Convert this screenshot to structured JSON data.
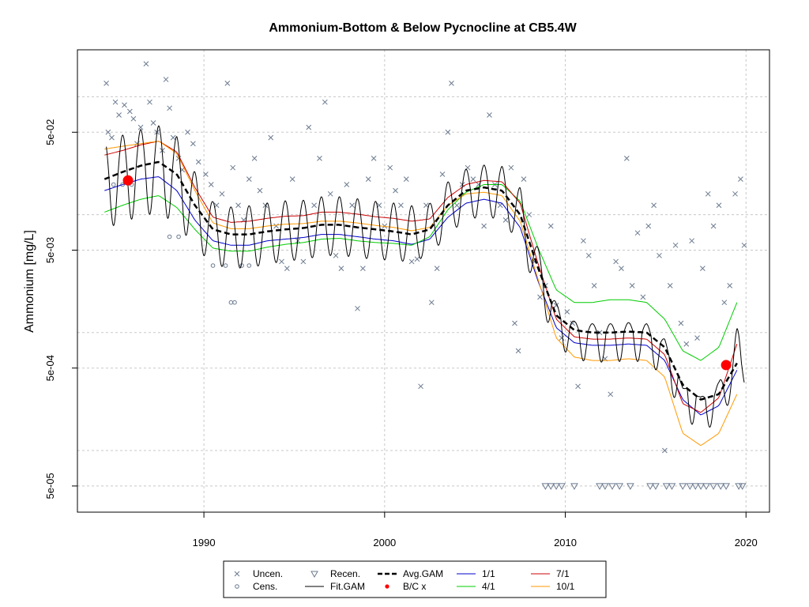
{
  "chart_data": {
    "type": "line",
    "title": "Ammonium-Bottom & Below Pycnocline at CB5.4W",
    "xlabel": "",
    "ylabel": "Ammonium [mg/L]",
    "y_scale": "log10",
    "xlim": [
      1983,
      2021.3
    ],
    "ylim": [
      3e-05,
      0.25
    ],
    "x_ticks": [
      1990,
      2000,
      2010,
      2020
    ],
    "x_tick_labels": [
      "1990",
      "2000",
      "2010",
      "2020"
    ],
    "y_ticks": [
      5e-05,
      0.0005,
      0.005,
      0.05
    ],
    "y_tick_labels": [
      "5e-05",
      "5e-04",
      "5e-03",
      "5e-02"
    ],
    "grid": true,
    "legend_position": "bottom-center",
    "legend": [
      {
        "label": "Uncen.",
        "symbol": "x"
      },
      {
        "label": "Cens.",
        "symbol": "circle"
      },
      {
        "label": "Recen.",
        "symbol": "triangle-down"
      },
      {
        "label": "Fit.GAM",
        "symbol": "line"
      },
      {
        "label": "Avg.GAM",
        "symbol": "dashed-line"
      },
      {
        "label": "B/C x",
        "symbol": "dot"
      },
      {
        "label": "1/1",
        "symbol": "line"
      },
      {
        "label": "4/1",
        "symbol": "line"
      },
      {
        "label": "7/1",
        "symbol": "line"
      },
      {
        "label": "10/1",
        "symbol": "line"
      }
    ],
    "colors": {
      "points": "#6b7a8f",
      "fit": "#000000",
      "avg": "#000000",
      "bc": "#ff0000",
      "s1_1": "#0000cc",
      "s4_1": "#00cc00",
      "s7_1": "#cc0000",
      "s10_1": "#ff9900",
      "grid": "#c8c8c8"
    },
    "avg_gam": {
      "x": [
        1984.5,
        1985.5,
        1986.5,
        1987.5,
        1988.5,
        1989.5,
        1990.5,
        1991.5,
        1992.5,
        1993.5,
        1994.5,
        1995.5,
        1996.5,
        1997.5,
        1998.5,
        1999.5,
        2000.5,
        2001.5,
        2002.5,
        2003.5,
        2004.5,
        2005.5,
        2006.5,
        2007.5,
        2008.5,
        2009.5,
        2010.5,
        2011.5,
        2012.5,
        2013.5,
        2014.5,
        2015.5,
        2016.5,
        2017.5,
        2018.5,
        2019.5
      ],
      "y": [
        0.02,
        0.023,
        0.026,
        0.028,
        0.022,
        0.012,
        0.0075,
        0.0068,
        0.0068,
        0.0072,
        0.0075,
        0.0077,
        0.0082,
        0.0082,
        0.0078,
        0.0075,
        0.0072,
        0.0068,
        0.0075,
        0.012,
        0.016,
        0.017,
        0.016,
        0.01,
        0.0035,
        0.0014,
        0.00105,
        0.001,
        0.001,
        0.00102,
        0.001,
        0.00075,
        0.00036,
        0.00027,
        0.0003,
        0.00055
      ]
    },
    "seasonal_curves": [
      {
        "name": "1/1",
        "x": [
          1984.5,
          1985.5,
          1986.5,
          1987.5,
          1988.5,
          1989.5,
          1990.5,
          1991.5,
          1992.5,
          1993.5,
          1994.5,
          1995.5,
          1996.5,
          1997.5,
          1998.5,
          1999.5,
          2000.5,
          2001.5,
          2002.5,
          2003.5,
          2004.5,
          2005.5,
          2006.5,
          2007.5,
          2008.5,
          2009.5,
          2010.5,
          2011.5,
          2012.5,
          2013.5,
          2014.5,
          2015.5,
          2016.5,
          2017.5,
          2018.5,
          2019.5
        ],
        "y": [
          0.016,
          0.018,
          0.02,
          0.021,
          0.016,
          0.009,
          0.006,
          0.0055,
          0.0055,
          0.006,
          0.0062,
          0.0064,
          0.0068,
          0.0068,
          0.0065,
          0.0062,
          0.006,
          0.0056,
          0.0062,
          0.0095,
          0.0125,
          0.0135,
          0.0125,
          0.0078,
          0.0027,
          0.0011,
          0.00082,
          0.00078,
          0.00078,
          0.0008,
          0.00078,
          0.00058,
          0.00027,
          0.0002,
          0.00024,
          0.00048
        ]
      },
      {
        "name": "4/1",
        "x": [
          1984.5,
          1985.5,
          1986.5,
          1987.5,
          1988.5,
          1989.5,
          1990.5,
          1991.5,
          1992.5,
          1993.5,
          1994.5,
          1995.5,
          1996.5,
          1997.5,
          1998.5,
          1999.5,
          2000.5,
          2001.5,
          2002.5,
          2003.5,
          2004.5,
          2005.5,
          2006.5,
          2007.5,
          2008.5,
          2009.5,
          2010.5,
          2011.5,
          2012.5,
          2013.5,
          2014.5,
          2015.5,
          2016.5,
          2017.5,
          2018.5,
          2019.5
        ],
        "y": [
          0.0105,
          0.012,
          0.0135,
          0.0145,
          0.0115,
          0.0075,
          0.0052,
          0.0049,
          0.0049,
          0.0053,
          0.0056,
          0.0058,
          0.0062,
          0.0063,
          0.006,
          0.0058,
          0.0057,
          0.0055,
          0.0065,
          0.011,
          0.0155,
          0.018,
          0.018,
          0.013,
          0.0052,
          0.0023,
          0.0018,
          0.0018,
          0.0019,
          0.0019,
          0.0018,
          0.0013,
          0.0007,
          0.00058,
          0.00075,
          0.0018
        ]
      },
      {
        "name": "7/1",
        "x": [
          1984.5,
          1985.5,
          1986.5,
          1987.5,
          1988.5,
          1989.5,
          1990.5,
          1991.5,
          1992.5,
          1993.5,
          1994.5,
          1995.5,
          1996.5,
          1997.5,
          1998.5,
          1999.5,
          2000.5,
          2001.5,
          2002.5,
          2003.5,
          2004.5,
          2005.5,
          2006.5,
          2007.5,
          2008.5,
          2009.5,
          2010.5,
          2011.5,
          2012.5,
          2013.5,
          2014.5,
          2015.5,
          2016.5,
          2017.5,
          2018.5,
          2019.5
        ],
        "y": [
          0.032,
          0.035,
          0.039,
          0.042,
          0.034,
          0.017,
          0.0095,
          0.0086,
          0.0088,
          0.0093,
          0.0097,
          0.0098,
          0.0105,
          0.0105,
          0.0101,
          0.0096,
          0.0093,
          0.0088,
          0.0092,
          0.014,
          0.018,
          0.0195,
          0.019,
          0.0125,
          0.0038,
          0.0013,
          0.00092,
          0.00088,
          0.00088,
          0.0009,
          0.00088,
          0.00065,
          0.00025,
          0.00021,
          0.00028,
          0.0008
        ]
      },
      {
        "name": "10/1",
        "x": [
          1984.5,
          1985.5,
          1986.5,
          1987.5,
          1988.5,
          1989.5,
          1990.5,
          1991.5,
          1992.5,
          1993.5,
          1994.5,
          1995.5,
          1996.5,
          1997.5,
          1998.5,
          1999.5,
          2000.5,
          2001.5,
          2002.5,
          2003.5,
          2004.5,
          2005.5,
          2006.5,
          2007.5,
          2008.5,
          2009.5,
          2010.5,
          2011.5,
          2012.5,
          2013.5,
          2014.5,
          2015.5,
          2016.5,
          2017.5,
          2018.5,
          2019.5
        ],
        "y": [
          0.036,
          0.038,
          0.04,
          0.042,
          0.033,
          0.016,
          0.0085,
          0.0076,
          0.0076,
          0.008,
          0.0083,
          0.0084,
          0.0088,
          0.0088,
          0.0085,
          0.0081,
          0.0078,
          0.0073,
          0.0078,
          0.012,
          0.015,
          0.0155,
          0.0145,
          0.0088,
          0.0028,
          0.0009,
          0.00062,
          0.00058,
          0.00058,
          0.0006,
          0.00058,
          0.00042,
          0.00014,
          0.00011,
          0.00014,
          0.0003
        ]
      }
    ],
    "fit_gam": {
      "x_start": 1984.6,
      "x_end": 2019.9
    },
    "bc_points": [
      {
        "x": 1985.8,
        "y": 0.0195
      },
      {
        "x": 2018.9,
        "y": 0.00053
      }
    ],
    "uncensored_points": [
      [
        1984.6,
        0.13
      ],
      [
        1984.7,
        0.05
      ],
      [
        1984.9,
        0.045
      ],
      [
        1985.1,
        0.09
      ],
      [
        1985.3,
        0.07
      ],
      [
        1985.6,
        0.085
      ],
      [
        1985.9,
        0.075
      ],
      [
        1986.1,
        0.065
      ],
      [
        1986.3,
        0.04
      ],
      [
        1986.5,
        0.055
      ],
      [
        1986.8,
        0.19
      ],
      [
        1987.0,
        0.09
      ],
      [
        1987.2,
        0.06
      ],
      [
        1987.4,
        0.05
      ],
      [
        1987.7,
        0.035
      ],
      [
        1987.9,
        0.14
      ],
      [
        1988.1,
        0.08
      ],
      [
        1988.3,
        0.045
      ],
      [
        1988.6,
        0.03
      ],
      [
        1988.8,
        0.024
      ],
      [
        1989.1,
        0.05
      ],
      [
        1989.4,
        0.04
      ],
      [
        1989.7,
        0.028
      ],
      [
        1990.1,
        0.022
      ],
      [
        1990.4,
        0.018
      ],
      [
        1990.7,
        0.012
      ],
      [
        1991.0,
        0.015
      ],
      [
        1991.3,
        0.13
      ],
      [
        1991.6,
        0.025
      ],
      [
        1991.9,
        0.012
      ],
      [
        1992.2,
        0.009
      ],
      [
        1992.5,
        0.02
      ],
      [
        1992.8,
        0.03
      ],
      [
        1993.1,
        0.016
      ],
      [
        1993.4,
        0.012
      ],
      [
        1993.7,
        0.045
      ],
      [
        1994.0,
        0.008
      ],
      [
        1994.3,
        0.004
      ],
      [
        1994.6,
        0.0035
      ],
      [
        1994.9,
        0.02
      ],
      [
        1995.2,
        0.006
      ],
      [
        1995.5,
        0.004
      ],
      [
        1995.8,
        0.055
      ],
      [
        1996.1,
        0.012
      ],
      [
        1996.4,
        0.03
      ],
      [
        1996.7,
        0.09
      ],
      [
        1997.0,
        0.015
      ],
      [
        1997.3,
        0.0045
      ],
      [
        1997.6,
        0.0035
      ],
      [
        1997.9,
        0.018
      ],
      [
        1998.2,
        0.012
      ],
      [
        1998.5,
        0.0016
      ],
      [
        1998.8,
        0.0035
      ],
      [
        1999.1,
        0.02
      ],
      [
        1999.4,
        0.03
      ],
      [
        1999.7,
        0.012
      ],
      [
        2000.0,
        0.008
      ],
      [
        2000.3,
        0.025
      ],
      [
        2000.6,
        0.016
      ],
      [
        2000.9,
        0.012
      ],
      [
        2001.2,
        0.02
      ],
      [
        2001.5,
        0.004
      ],
      [
        2001.8,
        0.0042
      ],
      [
        2002.0,
        0.00035
      ],
      [
        2002.3,
        0.012
      ],
      [
        2002.6,
        0.0018
      ],
      [
        2002.9,
        0.0035
      ],
      [
        2003.2,
        0.022
      ],
      [
        2003.5,
        0.05
      ],
      [
        2003.7,
        0.13
      ],
      [
        2004.0,
        0.012
      ],
      [
        2004.3,
        0.018
      ],
      [
        2004.6,
        0.025
      ],
      [
        2004.9,
        0.02
      ],
      [
        2005.2,
        0.018
      ],
      [
        2005.5,
        0.008
      ],
      [
        2005.8,
        0.07
      ],
      [
        2006.1,
        0.018
      ],
      [
        2006.4,
        0.012
      ],
      [
        2006.7,
        0.009
      ],
      [
        2007.0,
        0.025
      ],
      [
        2007.2,
        0.0012
      ],
      [
        2007.4,
        0.0007
      ],
      [
        2007.7,
        0.02
      ],
      [
        2008.0,
        0.01
      ],
      [
        2008.3,
        0.004
      ],
      [
        2008.6,
        0.002
      ],
      [
        2008.9,
        0.0025
      ],
      [
        2009.2,
        0.008
      ],
      [
        2009.5,
        0.0017
      ],
      [
        2009.8,
        0.0009
      ],
      [
        2010.1,
        0.0015
      ],
      [
        2010.4,
        0.0012
      ],
      [
        2010.7,
        0.00035
      ],
      [
        2011.0,
        0.006
      ],
      [
        2011.3,
        0.0045
      ],
      [
        2011.6,
        0.0025
      ],
      [
        2011.9,
        0.001
      ],
      [
        2012.2,
        0.0006
      ],
      [
        2012.5,
        0.0003
      ],
      [
        2012.8,
        0.004
      ],
      [
        2013.1,
        0.0035
      ],
      [
        2013.4,
        0.03
      ],
      [
        2013.7,
        0.0025
      ],
      [
        2014.0,
        0.007
      ],
      [
        2014.3,
        0.002
      ],
      [
        2014.6,
        0.008
      ],
      [
        2014.9,
        0.012
      ],
      [
        2015.2,
        0.0045
      ],
      [
        2015.5,
        0.0001
      ],
      [
        2015.8,
        0.0025
      ],
      [
        2016.1,
        0.0055
      ],
      [
        2016.4,
        0.0012
      ],
      [
        2016.7,
        0.0008
      ],
      [
        2017.0,
        0.006
      ],
      [
        2017.3,
        0.0009
      ],
      [
        2017.6,
        0.0035
      ],
      [
        2017.9,
        0.015
      ],
      [
        2018.2,
        0.008
      ],
      [
        2018.5,
        0.012
      ],
      [
        2018.8,
        0.0018
      ],
      [
        2019.1,
        0.0025
      ],
      [
        2019.4,
        0.015
      ],
      [
        2019.7,
        0.02
      ],
      [
        2019.9,
        0.0055
      ]
    ],
    "censored_points": [
      [
        1985.0,
        0.018
      ],
      [
        1985.5,
        0.018
      ],
      [
        1986.0,
        0.018
      ],
      [
        1988.1,
        0.0065
      ],
      [
        1988.6,
        0.0065
      ],
      [
        1990.5,
        0.0037
      ],
      [
        1991.2,
        0.0037
      ],
      [
        1991.5,
        0.0018
      ],
      [
        1991.7,
        0.0018
      ],
      [
        1992.1,
        0.0037
      ],
      [
        1992.5,
        0.0037
      ]
    ],
    "recensored_points": [
      [
        2008.9,
        5e-05
      ],
      [
        2009.2,
        5e-05
      ],
      [
        2009.5,
        5e-05
      ],
      [
        2009.8,
        5e-05
      ],
      [
        2010.5,
        5e-05
      ],
      [
        2011.9,
        5e-05
      ],
      [
        2012.2,
        5e-05
      ],
      [
        2012.6,
        5e-05
      ],
      [
        2013.0,
        5e-05
      ],
      [
        2013.6,
        5e-05
      ],
      [
        2014.7,
        5e-05
      ],
      [
        2015.0,
        5e-05
      ],
      [
        2015.6,
        5e-05
      ],
      [
        2015.9,
        5e-05
      ],
      [
        2016.5,
        5e-05
      ],
      [
        2016.9,
        5e-05
      ],
      [
        2017.2,
        5e-05
      ],
      [
        2017.5,
        5e-05
      ],
      [
        2017.8,
        5e-05
      ],
      [
        2018.2,
        5e-05
      ],
      [
        2018.6,
        5e-05
      ],
      [
        2018.9,
        5e-05
      ],
      [
        2019.6,
        5e-05
      ],
      [
        2019.8,
        5e-05
      ]
    ]
  }
}
